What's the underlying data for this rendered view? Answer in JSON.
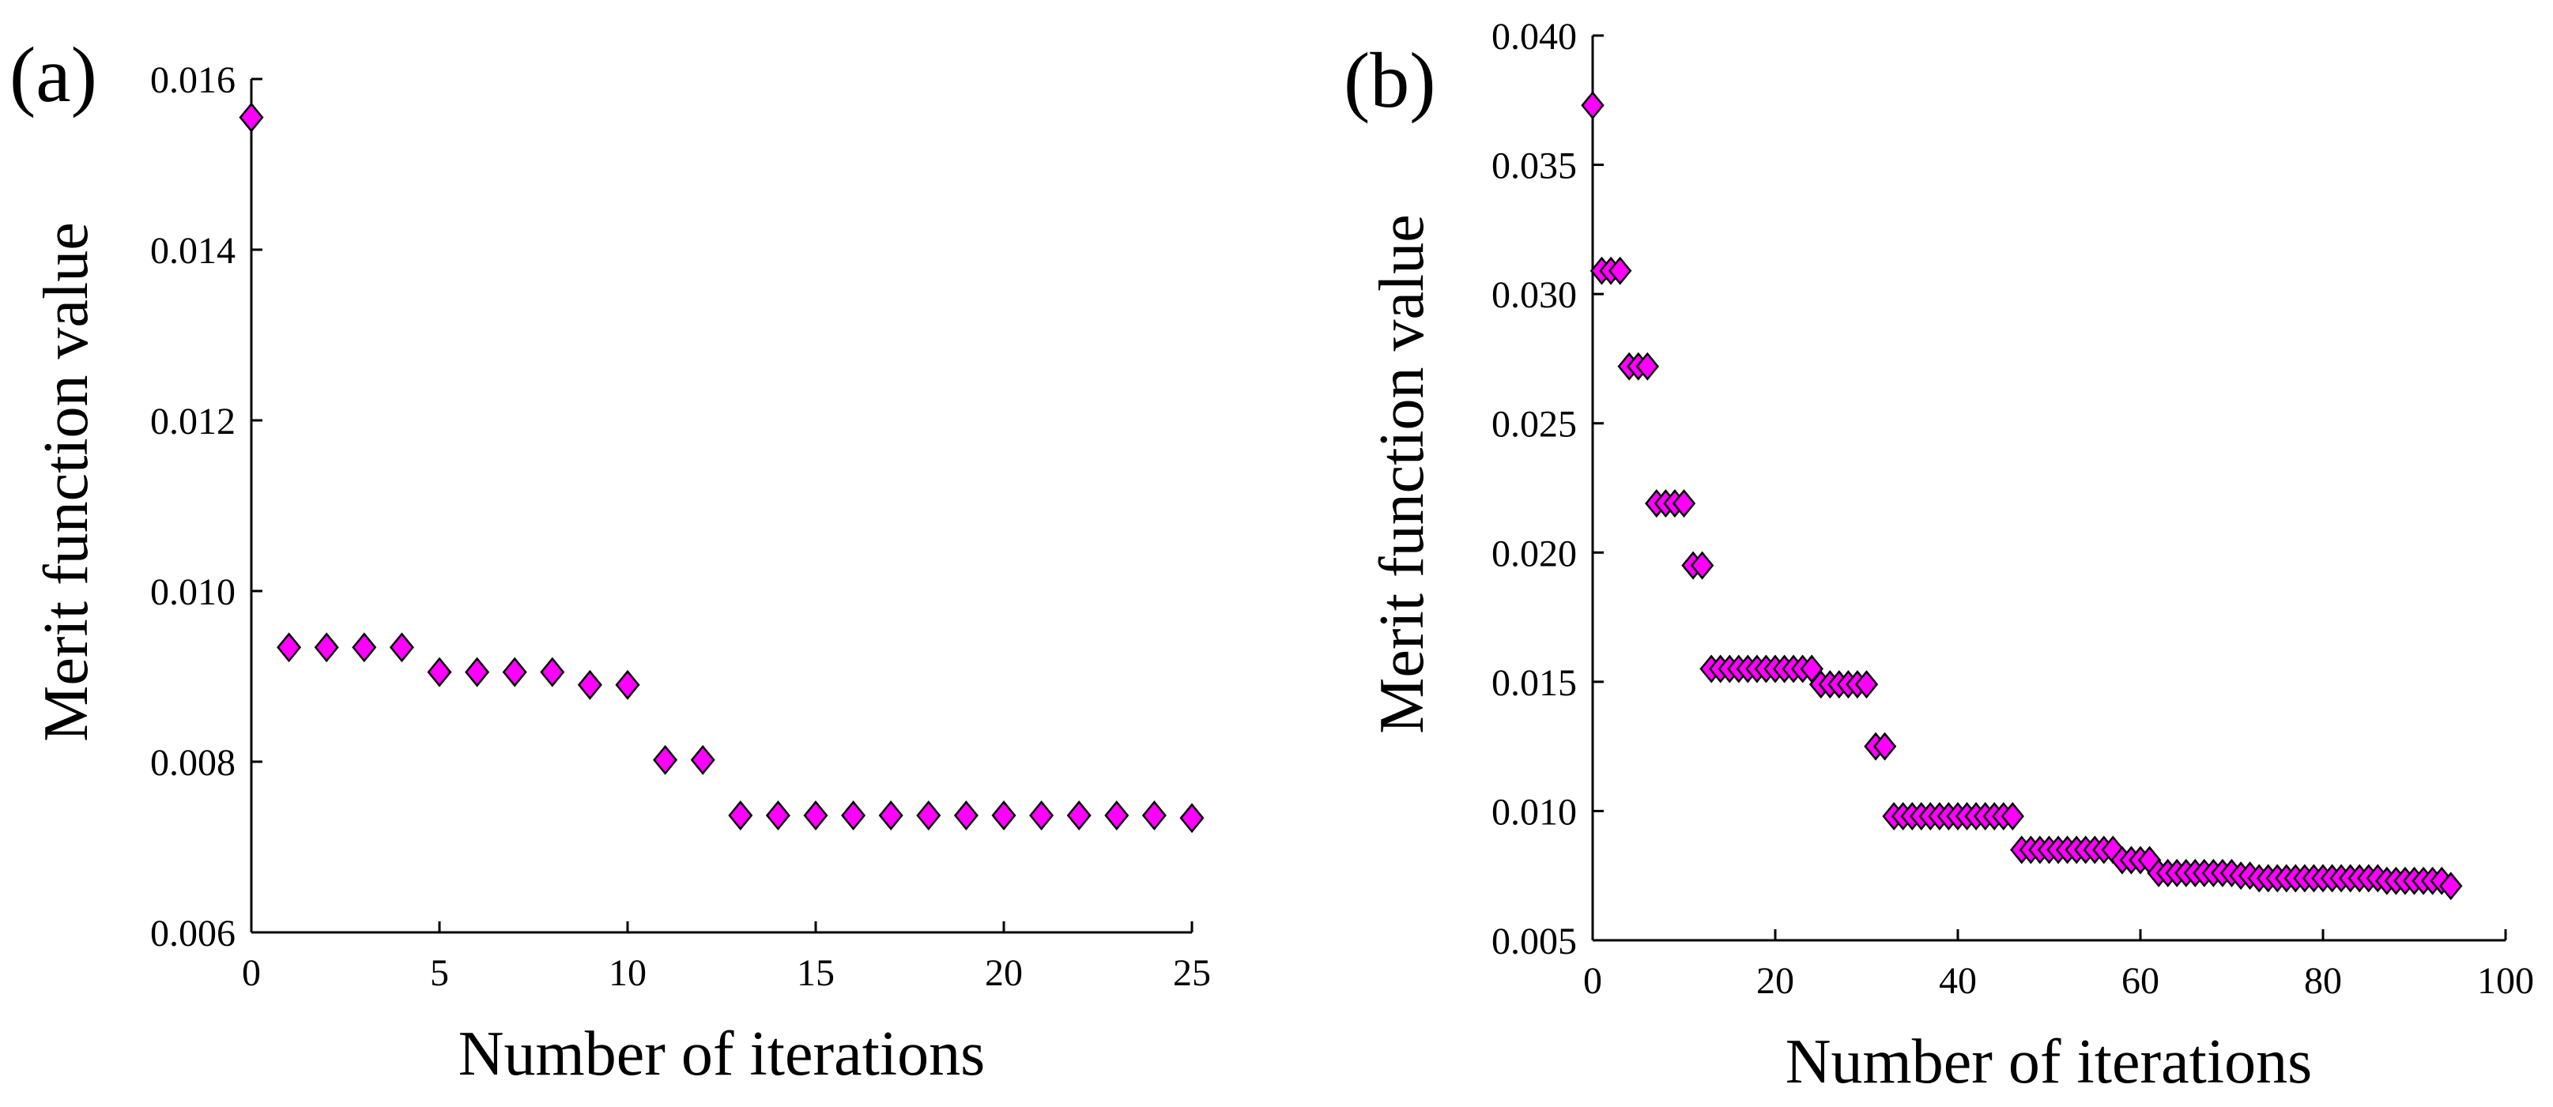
{
  "chart_data": [
    {
      "type": "scatter",
      "panel_label": "(a)",
      "xlabel": "Number of iterations",
      "ylabel": "Merit function value",
      "xlim": [
        0,
        25
      ],
      "ylim": [
        0.006,
        0.016
      ],
      "xticks": [
        0,
        5,
        10,
        15,
        20,
        25
      ],
      "yticks": [
        0.006,
        0.008,
        0.01,
        0.012,
        0.014,
        0.016
      ],
      "xtick_labels": [
        "0",
        "5",
        "10",
        "15",
        "20",
        "25"
      ],
      "ytick_labels": [
        "0.006",
        "0.008",
        "0.010",
        "0.012",
        "0.014",
        "0.016"
      ],
      "grid": false,
      "marker": "diamond",
      "marker_color": "#ff00ff",
      "series": [
        {
          "name": "Merit function value",
          "x": [
            0,
            1,
            2,
            3,
            4,
            5,
            6,
            7,
            8,
            9,
            10,
            11,
            12,
            13,
            14,
            15,
            16,
            17,
            18,
            19,
            20,
            21,
            22,
            23,
            24,
            25
          ],
          "y": [
            0.01555,
            0.00934,
            0.00934,
            0.00934,
            0.00934,
            0.00905,
            0.00905,
            0.00905,
            0.00905,
            0.0089,
            0.0089,
            0.00802,
            0.00802,
            0.00737,
            0.00737,
            0.00737,
            0.00737,
            0.00737,
            0.00737,
            0.00737,
            0.00737,
            0.00737,
            0.00737,
            0.00737,
            0.00737,
            0.00734
          ]
        }
      ]
    },
    {
      "type": "scatter",
      "panel_label": "(b)",
      "xlabel": "Number of iterations",
      "ylabel": "Merit function value",
      "xlim": [
        0,
        100
      ],
      "ylim": [
        0.005,
        0.04
      ],
      "xticks": [
        0,
        20,
        40,
        60,
        80,
        100
      ],
      "yticks": [
        0.005,
        0.01,
        0.015,
        0.02,
        0.025,
        0.03,
        0.035,
        0.04
      ],
      "xtick_labels": [
        "0",
        "20",
        "40",
        "60",
        "80",
        "100"
      ],
      "ytick_labels": [
        "0.005",
        "0.010",
        "0.015",
        "0.020",
        "0.025",
        "0.030",
        "0.035",
        "0.040"
      ],
      "grid": false,
      "marker": "diamond",
      "marker_color": "#ff00ff",
      "series": [
        {
          "name": "Merit function value",
          "x": [
            0,
            1,
            2,
            3,
            4,
            5,
            6,
            7,
            8,
            9,
            10,
            11,
            12,
            13,
            14,
            15,
            16,
            17,
            18,
            19,
            20,
            21,
            22,
            23,
            24,
            25,
            26,
            27,
            28,
            29,
            30,
            31,
            32,
            33,
            34,
            35,
            36,
            37,
            38,
            39,
            40,
            41,
            42,
            43,
            44,
            45,
            46,
            47,
            48,
            49,
            50,
            51,
            52,
            53,
            54,
            55,
            56,
            57,
            58,
            59,
            60,
            61,
            62,
            63,
            64,
            65,
            66,
            67,
            68,
            69,
            70,
            71,
            72,
            73,
            74,
            75,
            76,
            77,
            78,
            79,
            80,
            81,
            82,
            83,
            84,
            85,
            86,
            87,
            88,
            89,
            90,
            91,
            92,
            93,
            94
          ],
          "y": [
            0.0373,
            0.0309,
            0.0309,
            0.0309,
            0.0272,
            0.0272,
            0.0272,
            0.0219,
            0.0219,
            0.0219,
            0.0219,
            0.0195,
            0.0195,
            0.0155,
            0.0155,
            0.0155,
            0.0155,
            0.0155,
            0.0155,
            0.0155,
            0.0155,
            0.0155,
            0.0155,
            0.0155,
            0.0155,
            0.0149,
            0.0149,
            0.0149,
            0.0149,
            0.0149,
            0.0149,
            0.0125,
            0.0125,
            0.0098,
            0.0098,
            0.0098,
            0.0098,
            0.0098,
            0.0098,
            0.0098,
            0.0098,
            0.0098,
            0.0098,
            0.0098,
            0.0098,
            0.0098,
            0.0098,
            0.0085,
            0.0085,
            0.0085,
            0.0085,
            0.0085,
            0.0085,
            0.0085,
            0.0085,
            0.0085,
            0.0085,
            0.0085,
            0.0081,
            0.0081,
            0.0081,
            0.0081,
            0.0076,
            0.0076,
            0.0076,
            0.0076,
            0.0076,
            0.0076,
            0.0076,
            0.0076,
            0.0076,
            0.0075,
            0.0075,
            0.0074,
            0.0074,
            0.0074,
            0.0074,
            0.0074,
            0.0074,
            0.0074,
            0.0074,
            0.0074,
            0.0074,
            0.0074,
            0.0074,
            0.0074,
            0.0074,
            0.0073,
            0.0073,
            0.0073,
            0.0073,
            0.0073,
            0.0073,
            0.0073,
            0.0071
          ]
        }
      ]
    }
  ]
}
